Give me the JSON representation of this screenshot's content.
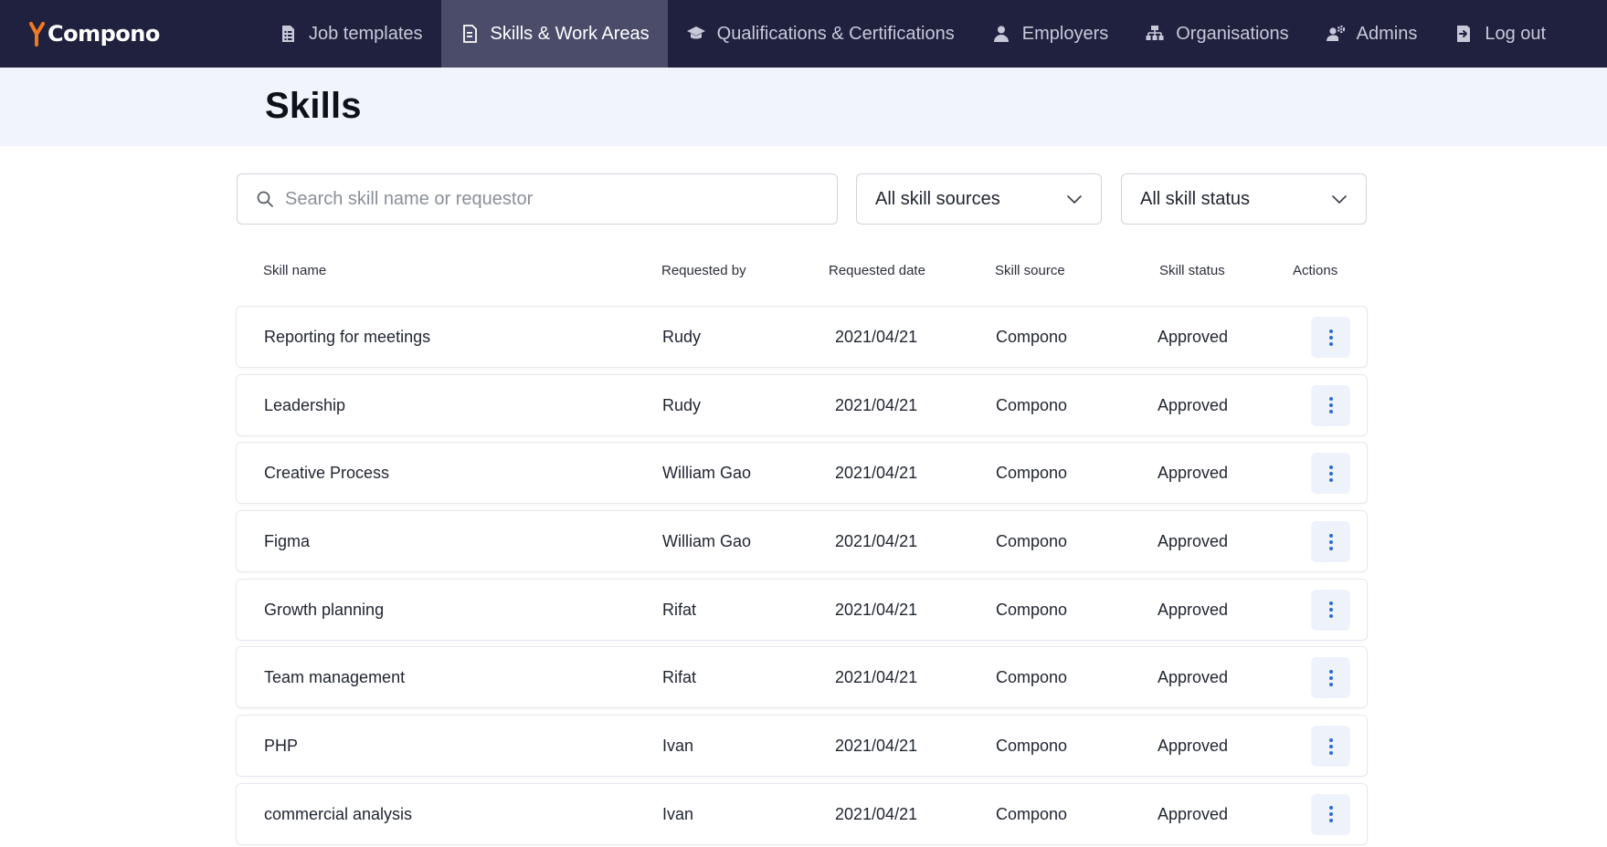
{
  "brand": {
    "name": "Compono",
    "accent": "#f07a1f",
    "nav_bg": "#20213f",
    "nav_active_bg": "#4b4c6a"
  },
  "nav": {
    "items": [
      {
        "label": "Job templates",
        "icon": "document-list-icon",
        "active": false
      },
      {
        "label": "Skills & Work Areas",
        "icon": "document-icon",
        "active": true
      },
      {
        "label": "Qualifications & Certifications",
        "icon": "graduation-cap-icon",
        "active": false
      },
      {
        "label": "Employers",
        "icon": "person-icon",
        "active": false
      },
      {
        "label": "Organisations",
        "icon": "org-chart-icon",
        "active": false
      },
      {
        "label": "Admins",
        "icon": "admin-gear-icon",
        "active": false
      },
      {
        "label": "Log out",
        "icon": "logout-icon",
        "active": false
      }
    ]
  },
  "page": {
    "title": "Skills"
  },
  "filters": {
    "search_placeholder": "Search skill name or requestor",
    "search_value": "",
    "sources_selected": "All skill sources",
    "status_selected": "All skill status"
  },
  "table": {
    "headers": {
      "name": "Skill name",
      "requested_by": "Requested by",
      "requested_date": "Requested date",
      "source": "Skill source",
      "status": "Skill status",
      "actions": "Actions"
    },
    "rows": [
      {
        "name": "Reporting for meetings",
        "requested_by": "Rudy",
        "date": "2021/04/21",
        "source": "Compono",
        "status": "Approved"
      },
      {
        "name": "Leadership",
        "requested_by": "Rudy",
        "date": "2021/04/21",
        "source": "Compono",
        "status": "Approved"
      },
      {
        "name": "Creative Process",
        "requested_by": "William Gao",
        "date": "2021/04/21",
        "source": "Compono",
        "status": "Approved"
      },
      {
        "name": "Figma",
        "requested_by": "William Gao",
        "date": "2021/04/21",
        "source": "Compono",
        "status": "Approved"
      },
      {
        "name": "Growth planning",
        "requested_by": "Rifat",
        "date": "2021/04/21",
        "source": "Compono",
        "status": "Approved"
      },
      {
        "name": "Team management",
        "requested_by": "Rifat",
        "date": "2021/04/21",
        "source": "Compono",
        "status": "Approved"
      },
      {
        "name": "PHP",
        "requested_by": "Ivan",
        "date": "2021/04/21",
        "source": "Compono",
        "status": "Approved"
      },
      {
        "name": "commercial analysis",
        "requested_by": "Ivan",
        "date": "2021/04/21",
        "source": "Compono",
        "status": "Approved"
      }
    ]
  }
}
